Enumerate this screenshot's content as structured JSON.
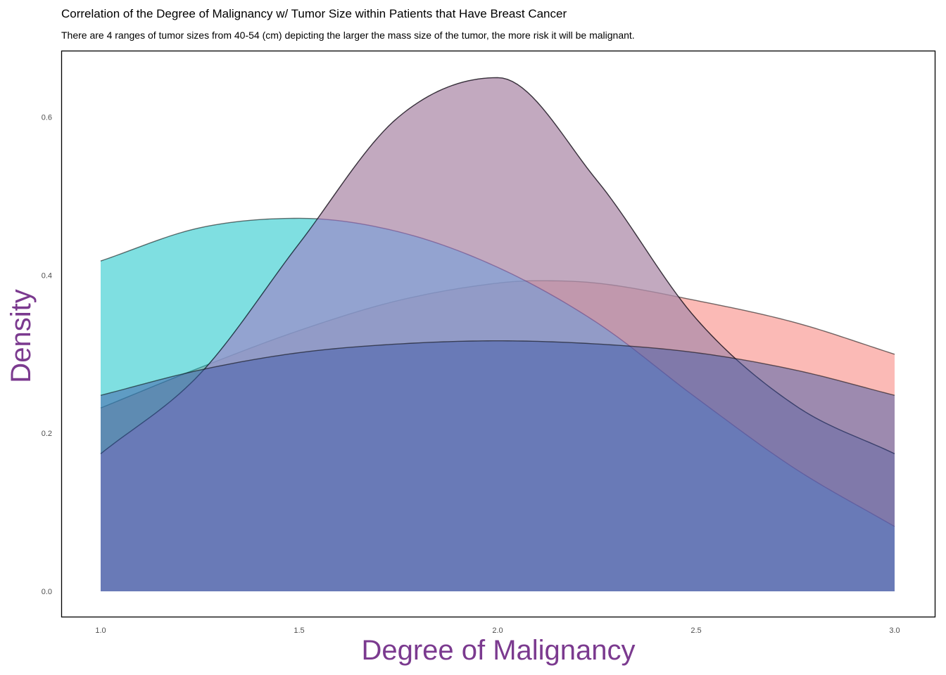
{
  "chart_data": {
    "type": "area",
    "title": "Correlation of the Degree of Malignancy w/ Tumor Size within Patients that Have Breast Cancer",
    "subtitle": "There are 4 ranges of tumor sizes from 40-54 (cm) depicting the larger the mass size of the tumor, the more risk it will be malignant.",
    "xlabel": "Degree of Malignancy",
    "ylabel": "Density",
    "xlim": [
      1.0,
      3.0
    ],
    "ylim": [
      0.0,
      0.65
    ],
    "x_ticks": [
      "1.0",
      "1.5",
      "2.0",
      "2.5",
      "3.0"
    ],
    "y_ticks": [
      "0.0",
      "0.2",
      "0.4",
      "0.6"
    ],
    "grid": false,
    "legend": "none",
    "series": [
      {
        "color": "#f8766d",
        "x": [
          1.0,
          1.25,
          1.5,
          1.75,
          2.0,
          2.1,
          2.25,
          2.5,
          2.75,
          3.0
        ],
        "values": [
          0.232,
          0.283,
          0.33,
          0.368,
          0.39,
          0.393,
          0.39,
          0.368,
          0.34,
          0.3
        ]
      },
      {
        "color": "#7cae00",
        "x": [
          1.0,
          1.25,
          1.5,
          1.75,
          2.0,
          2.25,
          2.5,
          2.75,
          3.0
        ],
        "values": [
          0.174,
          0.275,
          0.44,
          0.6,
          0.65,
          0.52,
          0.345,
          0.235,
          0.174
        ]
      },
      {
        "color": "#00bfc4",
        "x": [
          1.0,
          1.25,
          1.5,
          1.75,
          2.0,
          2.25,
          2.5,
          2.75,
          3.0
        ],
        "values": [
          0.418,
          0.46,
          0.472,
          0.455,
          0.41,
          0.34,
          0.245,
          0.155,
          0.082
        ]
      },
      {
        "color": "#c77cff",
        "x": [
          1.0,
          1.25,
          1.5,
          1.75,
          2.0,
          2.25,
          2.5,
          2.75,
          3.0
        ],
        "values": [
          0.174,
          0.275,
          0.44,
          0.6,
          0.65,
          0.52,
          0.345,
          0.235,
          0.174
        ]
      },
      {
        "color": "#3f5aa8",
        "x": [
          1.0,
          1.25,
          1.5,
          1.75,
          2.0,
          2.25,
          2.5,
          2.75,
          3.0
        ],
        "values": [
          0.248,
          0.28,
          0.302,
          0.313,
          0.317,
          0.313,
          0.302,
          0.28,
          0.248
        ]
      }
    ]
  }
}
